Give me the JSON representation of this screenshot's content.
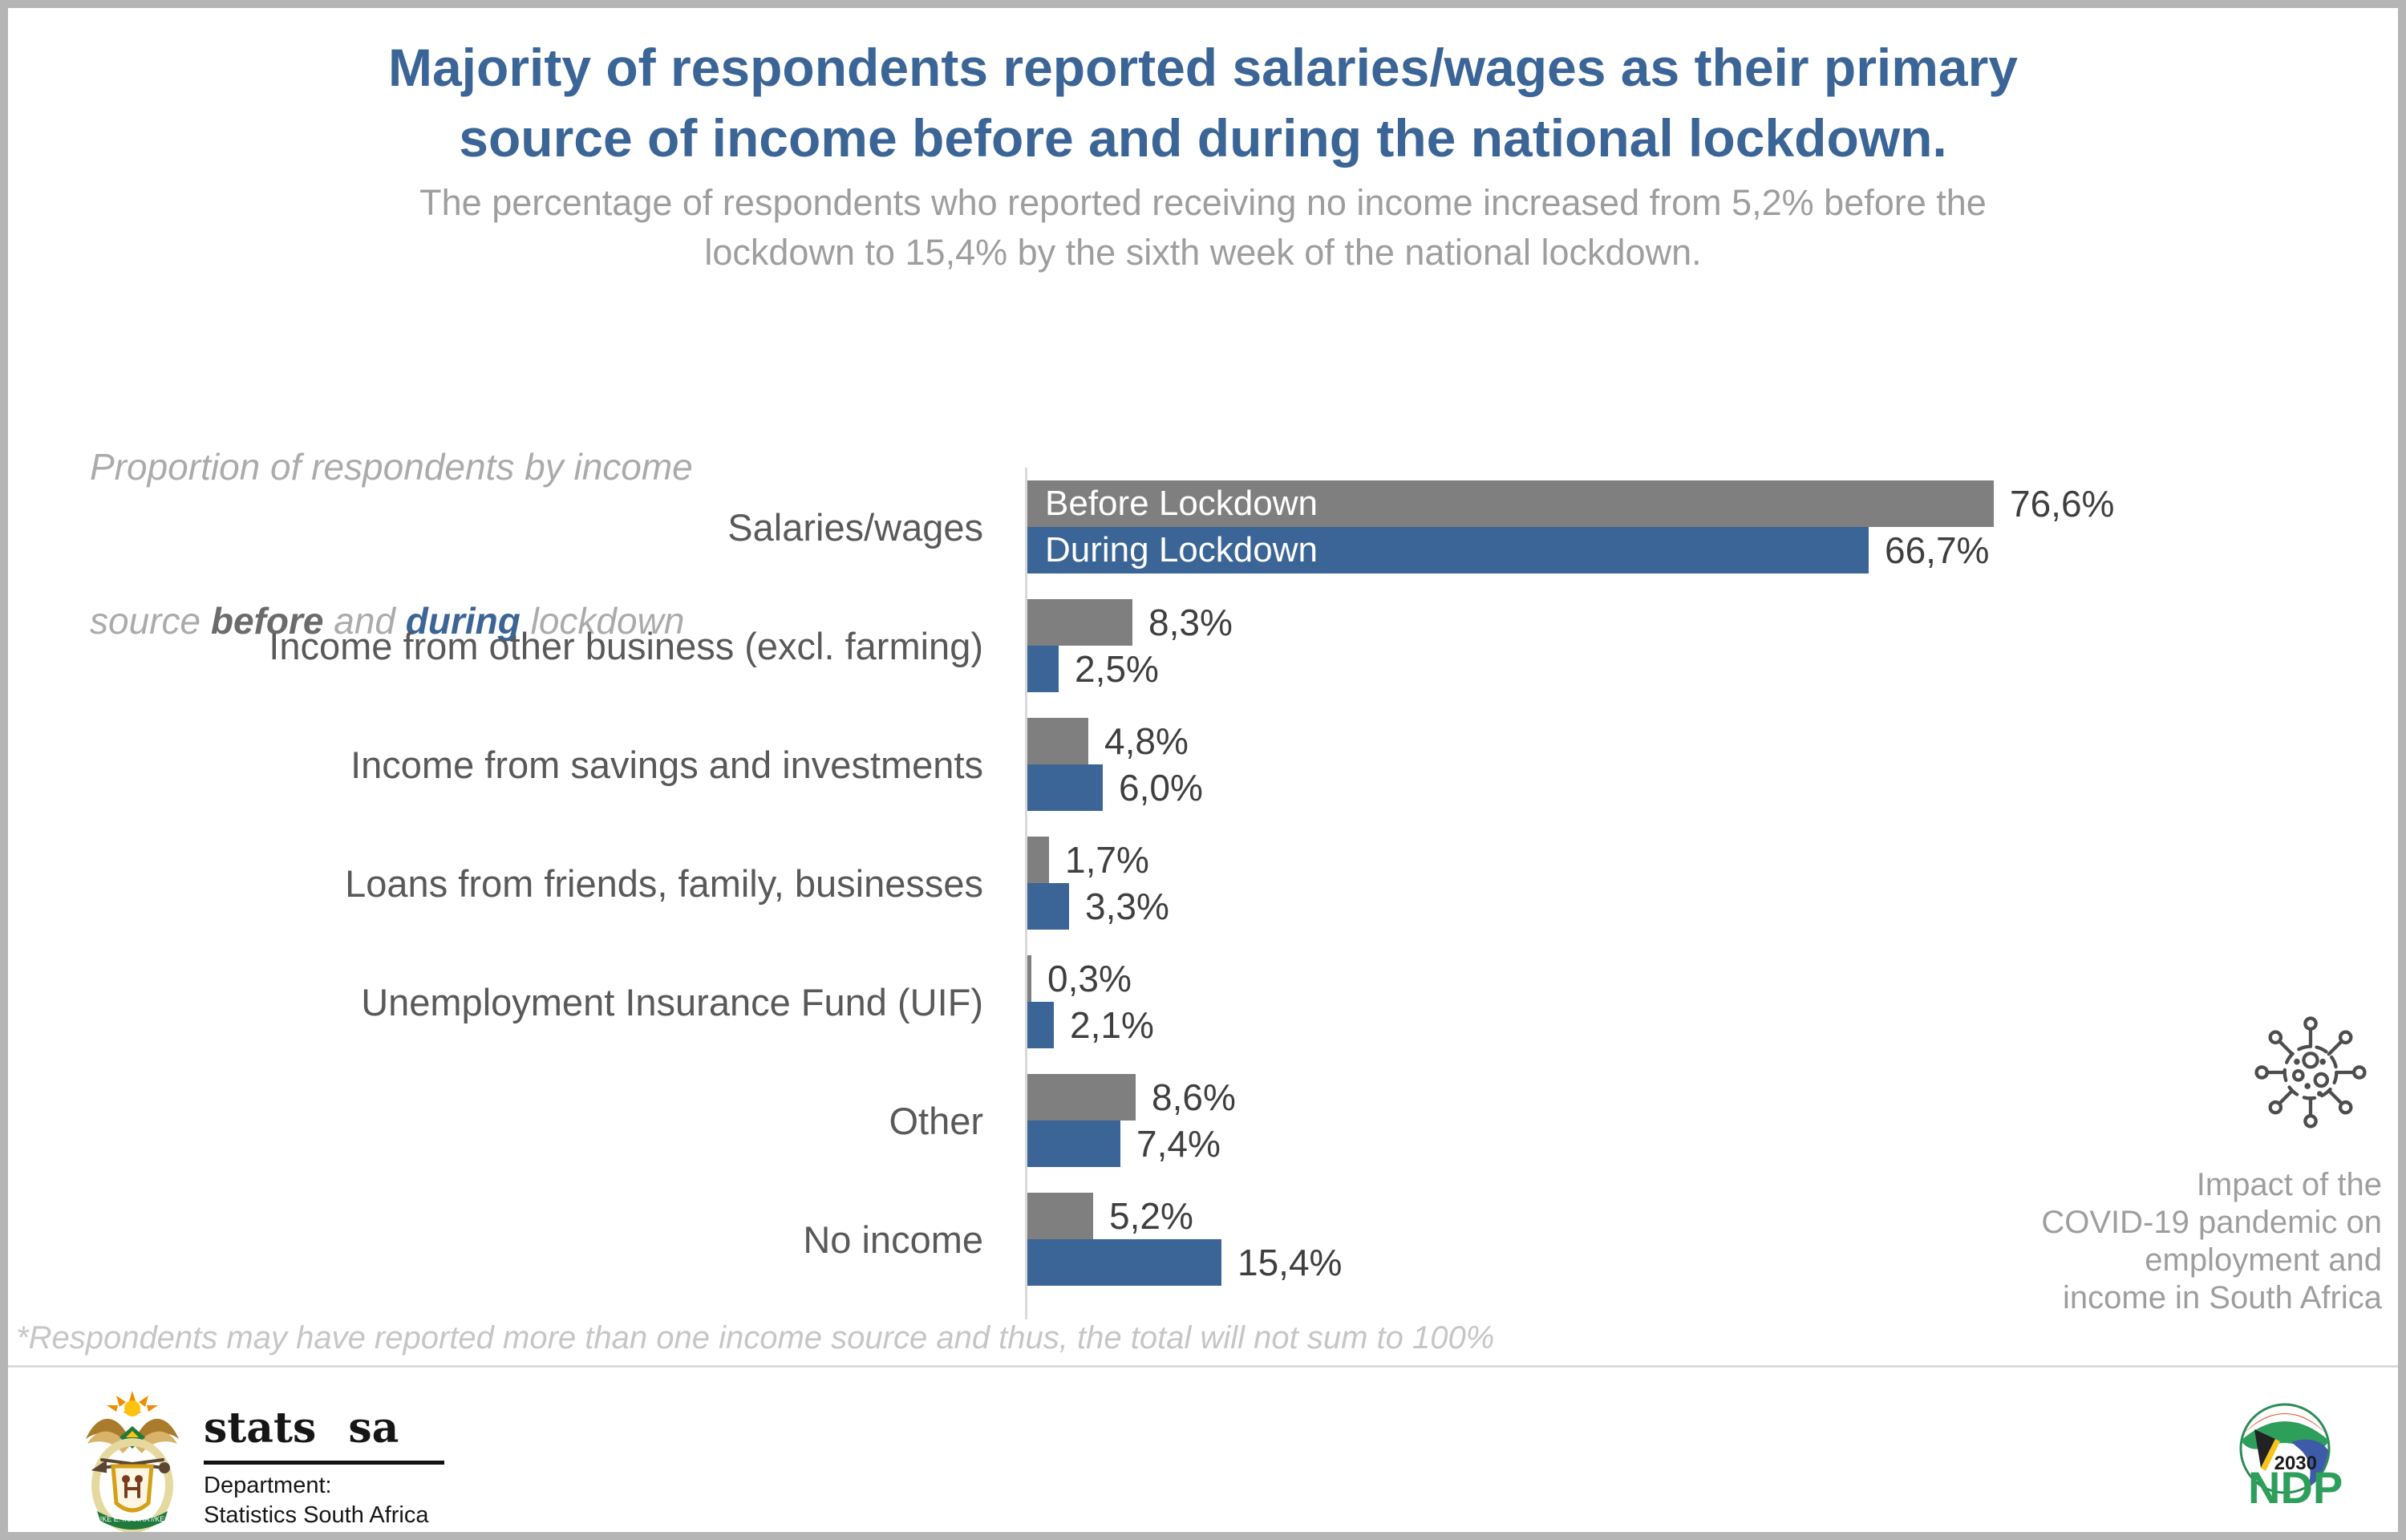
{
  "title": {
    "line1": "Majority of respondents reported salaries/wages as their primary",
    "line2": "source of income before and during the national lockdown."
  },
  "subtitle": {
    "line1": "The percentage of respondents who reported receiving no income increased from 5,2% before the",
    "line2": "lockdown to 15,4% by the sixth week of the national lockdown."
  },
  "chart_heading": {
    "line1": "Proportion of respondents by income",
    "line2_pre": "source ",
    "before_word": "before",
    "and_word": " and ",
    "during_word": "during",
    "line2_post": " lockdown"
  },
  "legend": {
    "before": "Before Lockdown",
    "during": "During Lockdown"
  },
  "chart_data": {
    "type": "bar",
    "orientation": "horizontal",
    "categories": [
      "Salaries/wages",
      "Income from other business (excl. farming)",
      "Income from savings and investments",
      "Loans from friends, family, businesses",
      "Unemployment Insurance Fund (UIF)",
      "Other",
      "No income"
    ],
    "series": [
      {
        "name": "Before Lockdown",
        "color": "#7F7F7F",
        "values": [
          76.6,
          8.3,
          4.8,
          1.7,
          0.3,
          8.6,
          5.2
        ]
      },
      {
        "name": "During Lockdown",
        "color": "#3A6596",
        "values": [
          66.7,
          2.5,
          6.0,
          3.3,
          2.1,
          7.4,
          15.4
        ]
      }
    ],
    "value_labels": [
      [
        "76,6%",
        "66,7%"
      ],
      [
        "8,3%",
        "2,5%"
      ],
      [
        "4,8%",
        "6,0%"
      ],
      [
        "1,7%",
        "3,3%"
      ],
      [
        "0,3%",
        "2,1%"
      ],
      [
        "8,6%",
        "7,4%"
      ],
      [
        "5,2%",
        "15,4%"
      ]
    ],
    "xlim": [
      0,
      100
    ],
    "grid": false,
    "legend_position": "inside-first-bars"
  },
  "footnote": "*Respondents may have reported more than one income source and thus, the total will not sum to 100%",
  "side_note": {
    "lines": [
      "Impact of the",
      "COVID-19 pandemic on",
      "employment and",
      "income in South Africa"
    ]
  },
  "footer": {
    "stats_sa": "stats sa",
    "dept_line1": "Department:",
    "dept_line2": "Statistics South Africa",
    "dept_line3": "REPUBLIC OF SOUTH AFRICA",
    "arms_motto": "!KE E: /XARRA //KE",
    "ndp_year": "2030",
    "ndp_name": "NDP"
  },
  "colors": {
    "accent": "#3A6596",
    "before": "#7F7F7F",
    "axis": "#D9D9D9",
    "subtitle": "#9E9E9E",
    "desc": "#ABABAB",
    "desc-bold": "#6B6B6B",
    "cat": "#595959",
    "val": "#3F3F3F",
    "footnote": "#C6C6C6",
    "side": "#9E9E9E"
  }
}
